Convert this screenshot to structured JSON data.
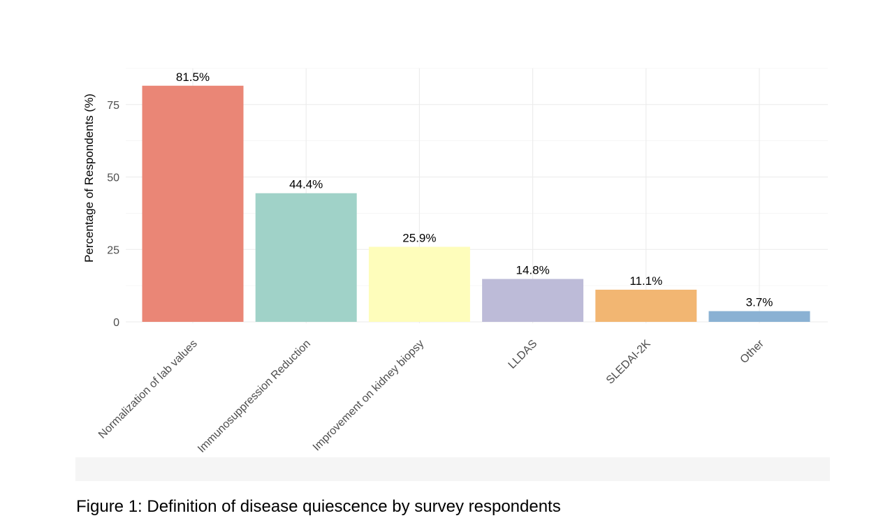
{
  "chart_data": {
    "type": "bar",
    "title": "",
    "xlabel": "",
    "ylabel": "Percentage of Respondents (%)",
    "categories": [
      "Normalization of lab values",
      "Immunosuppression Reduction",
      "Improvement on kidney biopsy",
      "LLDAS",
      "SLEDAI-2K",
      "Other"
    ],
    "values": [
      81.5,
      44.4,
      25.9,
      14.8,
      11.1,
      3.7
    ],
    "data_labels": [
      "81.5%",
      "44.4%",
      "25.9%",
      "14.8%",
      "11.1%",
      "3.7%"
    ],
    "colors": [
      "#ea8676",
      "#a0d2c8",
      "#fefdbb",
      "#bdbbd8",
      "#f2b672",
      "#8ab1d3"
    ],
    "yticks": [
      0,
      25,
      50,
      75
    ],
    "ylim": [
      0,
      87.5
    ],
    "grid": true,
    "legend": "none"
  },
  "caption": "Figure 1: Definition of disease quiescence by survey respondents"
}
